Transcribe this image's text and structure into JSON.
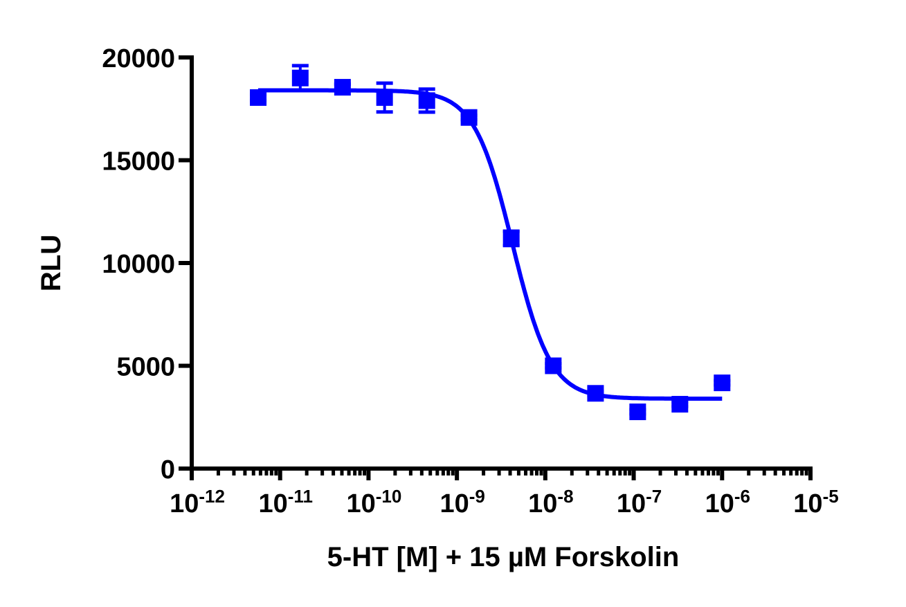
{
  "chart_data": {
    "type": "scatter",
    "title": "",
    "xlabel": "5-HT [M] + 15 µM Forskolin",
    "ylabel": "RLU",
    "xscale": "log",
    "xlim": [
      1e-12,
      1e-05
    ],
    "ylim": [
      0,
      20000
    ],
    "grid": false,
    "legend": "none",
    "color": "#0000ff",
    "x_ticks": [
      {
        "value": 1e-12,
        "base": "10",
        "exp": "-12"
      },
      {
        "value": 1e-11,
        "base": "10",
        "exp": "-11"
      },
      {
        "value": 1e-10,
        "base": "10",
        "exp": "-10"
      },
      {
        "value": 1e-09,
        "base": "10",
        "exp": "-9"
      },
      {
        "value": 1e-08,
        "base": "10",
        "exp": "-8"
      },
      {
        "value": 1e-07,
        "base": "10",
        "exp": "-7"
      },
      {
        "value": 1e-06,
        "base": "10",
        "exp": "-6"
      },
      {
        "value": 1e-05,
        "base": "10",
        "exp": "-5"
      }
    ],
    "y_ticks": [
      {
        "value": 0,
        "label": "0"
      },
      {
        "value": 5000,
        "label": "5000"
      },
      {
        "value": 10000,
        "label": "10000"
      },
      {
        "value": 15000,
        "label": "15000"
      },
      {
        "value": 20000,
        "label": "20000"
      }
    ],
    "points": [
      {
        "x": 5.65e-12,
        "y": 18050,
        "err": 150
      },
      {
        "x": 1.69e-11,
        "y": 19000,
        "err": 600
      },
      {
        "x": 5.08e-11,
        "y": 18550,
        "err": 150
      },
      {
        "x": 1.52e-10,
        "y": 18050,
        "err": 700
      },
      {
        "x": 4.57e-10,
        "y": 17900,
        "err": 560
      },
      {
        "x": 1.37e-09,
        "y": 17080,
        "err": 100
      },
      {
        "x": 4.12e-09,
        "y": 11200,
        "err": 350
      },
      {
        "x": 1.23e-08,
        "y": 5000,
        "err": 100
      },
      {
        "x": 3.7e-08,
        "y": 3660,
        "err": 100
      },
      {
        "x": 1.11e-07,
        "y": 2760,
        "err": 100
      },
      {
        "x": 3.33e-07,
        "y": 3130,
        "err": 100
      },
      {
        "x": 1e-06,
        "y": 4170,
        "err": 100
      }
    ],
    "fit": {
      "model": "sigmoidal dose-response",
      "top": 18400,
      "bottom": 3400,
      "log_ec50": -8.37,
      "hill_slope": -2.0,
      "x_range": [
        5.65e-12,
        1e-06
      ]
    }
  }
}
